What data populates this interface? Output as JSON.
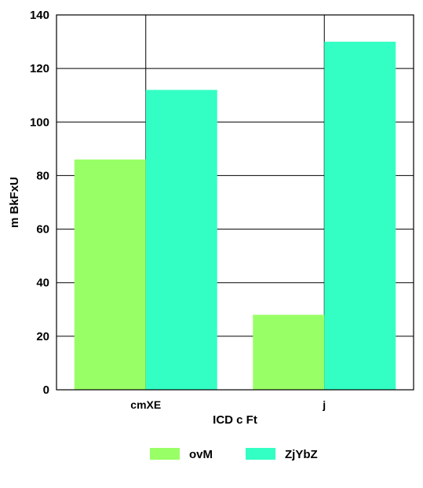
{
  "chart_data": {
    "type": "bar",
    "categories": [
      "cmXE",
      "j"
    ],
    "series": [
      {
        "name": "ovM",
        "values": [
          86,
          28
        ],
        "color": "#99ff66"
      },
      {
        "name": "ZjYbZ",
        "values": [
          112,
          130
        ],
        "color": "#33ffc4"
      }
    ],
    "xlabel": "ICD  c Ft",
    "ylabel": "m BkFxU",
    "ylim": [
      0,
      140
    ],
    "yticks": [
      0,
      20,
      40,
      60,
      80,
      100,
      120,
      140
    ],
    "grid": true,
    "legend_position": "bottom"
  }
}
